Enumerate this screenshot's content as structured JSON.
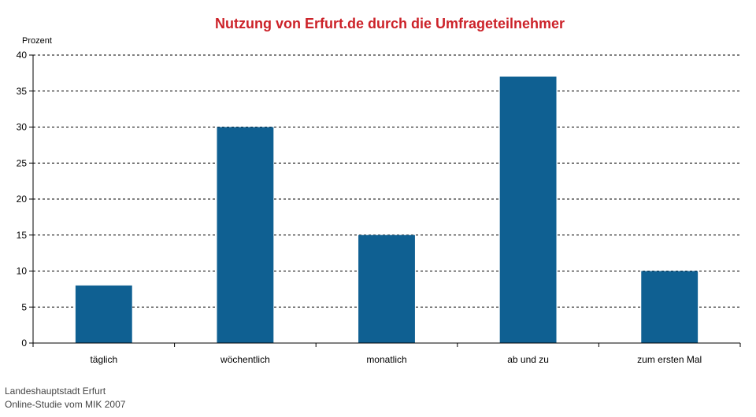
{
  "chart_data": {
    "type": "bar",
    "title": "Nutzung von Erfurt.de durch die Umfrageteilnehmer",
    "ylabel": "Prozent",
    "xlabel": "",
    "categories": [
      "täglich",
      "wöchentlich",
      "monatlich",
      "ab und zu",
      "zum ersten Mal"
    ],
    "values": [
      8,
      30,
      15,
      37,
      10
    ],
    "ylim": [
      0,
      40
    ],
    "yticks": [
      0,
      5,
      10,
      15,
      20,
      25,
      30,
      35,
      40
    ],
    "grid": true,
    "legend": "none",
    "bar_color": "#0f6092",
    "title_color": "#cc2229"
  },
  "footer": {
    "line1": "Landeshauptstadt Erfurt",
    "line2": "Online-Studie vom MIK 2007"
  }
}
